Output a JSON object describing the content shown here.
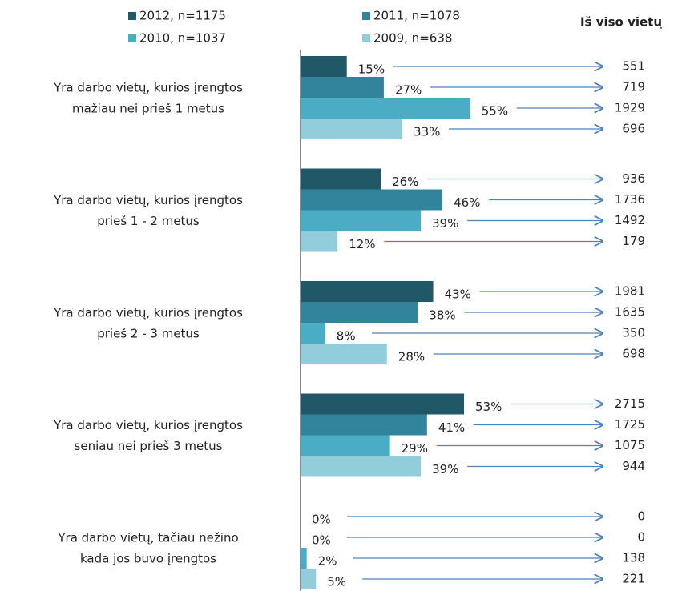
{
  "chart_data": {
    "type": "bar",
    "orientation": "horizontal",
    "totals_header": "Iš viso vietų",
    "categories": [
      [
        "Yra darbo vietų, kurios įrengtos",
        "mažiau nei prieš 1 metus"
      ],
      [
        "Yra darbo vietų, kurios įrengtos",
        "prieš 1 - 2 metus"
      ],
      [
        "Yra darbo vietų, kurios įrengtos",
        "prieš 2 - 3 metus"
      ],
      [
        "Yra darbo vietų, kurios įrengtos",
        "seniau nei prieš 3 metus"
      ],
      [
        "Yra darbo vietų, tačiau nežino",
        "kada jos buvo įrengtos"
      ]
    ],
    "xlim": [
      0,
      100
    ],
    "series": [
      {
        "name": "2012, n=1175",
        "color": "#215867",
        "values": [
          15,
          26,
          43,
          53,
          0
        ],
        "value_labels": [
          "15%",
          "26%",
          "43%",
          "53%",
          "0%"
        ],
        "totals": [
          551,
          936,
          1981,
          2715,
          0
        ]
      },
      {
        "name": "2011, n=1078",
        "color": "#31849b",
        "values": [
          27,
          46,
          38,
          41,
          0
        ],
        "value_labels": [
          "27%",
          "46%",
          "38%",
          "41%",
          "0%"
        ],
        "totals": [
          719,
          1736,
          1635,
          1725,
          0
        ]
      },
      {
        "name": "2010, n=1037",
        "color": "#4bacc6",
        "values": [
          55,
          39,
          8,
          29,
          2
        ],
        "value_labels": [
          "55%",
          "39%",
          "8%",
          "29%",
          "2%"
        ],
        "totals": [
          1929,
          1492,
          350,
          1075,
          138
        ]
      },
      {
        "name": "2009, n=638",
        "color": "#92cddc",
        "values": [
          33,
          12,
          28,
          39,
          5
        ],
        "value_labels": [
          "33%",
          "12%",
          "28%",
          "39%",
          "5%"
        ],
        "totals": [
          696,
          179,
          698,
          944,
          221
        ]
      }
    ],
    "legend": "top"
  }
}
